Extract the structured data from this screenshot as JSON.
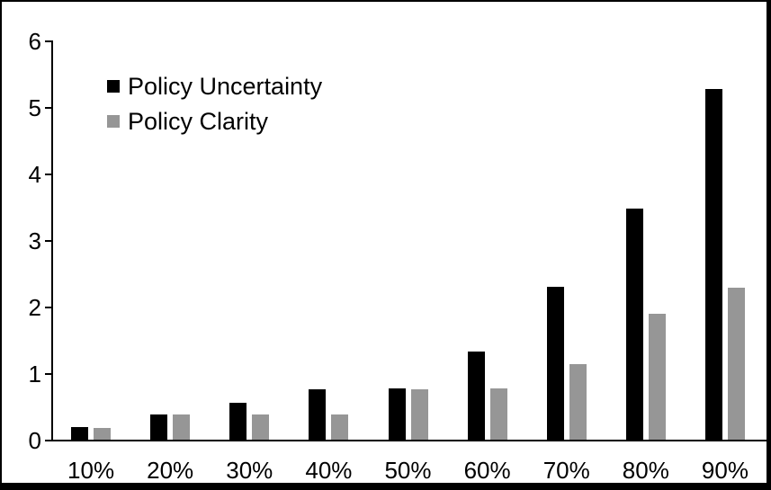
{
  "chart_data": {
    "type": "bar",
    "title": "",
    "xlabel": "",
    "ylabel": "",
    "categories": [
      "10%",
      "20%",
      "30%",
      "40%",
      "50%",
      "60%",
      "70%",
      "80%",
      "90%"
    ],
    "series": [
      {
        "name": "Policy Uncertainty",
        "color": "#000000",
        "values": [
          0.19,
          0.38,
          0.56,
          0.76,
          0.77,
          1.33,
          2.3,
          3.47,
          5.27
        ]
      },
      {
        "name": "Policy Clarity",
        "color": "#969696",
        "values": [
          0.18,
          0.38,
          0.38,
          0.38,
          0.76,
          0.77,
          1.14,
          1.89,
          2.28
        ]
      }
    ],
    "ylim": [
      0,
      6
    ],
    "yticks": [
      0,
      1,
      2,
      3,
      4,
      5,
      6
    ],
    "grid": false,
    "legend_position": "top-left-inside",
    "axis_color": "#000000",
    "background_color": "#ffffff",
    "frame_color": "#000000"
  }
}
